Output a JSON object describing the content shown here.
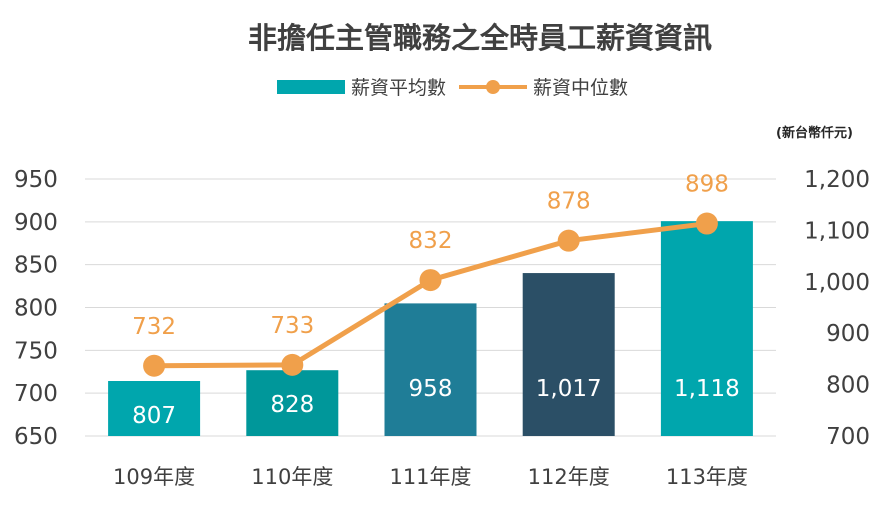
{
  "chart_data": {
    "type": "bar",
    "title": "非擔任主管職務之全時員工薪資資訊",
    "unit_label": "(新台幣仟元)",
    "categories": [
      "109年度",
      "110年度",
      "111年度",
      "112年度",
      "113年度"
    ],
    "series": [
      {
        "name": "薪資平均數",
        "type": "bar",
        "axis": "right",
        "values": [
          807,
          828,
          958,
          1017,
          1118
        ],
        "value_labels": [
          "807",
          "828",
          "958",
          "1,017",
          "1,118"
        ],
        "colors": [
          "#00a6ad",
          "#00979a",
          "#1f7d97",
          "#2b4f66",
          "#00a6ad"
        ]
      },
      {
        "name": "薪資中位數",
        "type": "line",
        "axis": "left",
        "values": [
          732,
          733,
          832,
          878,
          898
        ],
        "value_labels": [
          "732",
          "733",
          "832",
          "878",
          "898"
        ],
        "color": "#f0a04b"
      }
    ],
    "left_axis": {
      "ylim": [
        650,
        950
      ],
      "ticks": [
        "650",
        "700",
        "750",
        "800",
        "850",
        "900",
        "950"
      ]
    },
    "right_axis": {
      "ylim": [
        700,
        1200
      ],
      "ticks": [
        "700",
        "800",
        "900",
        "1,000",
        "1,100",
        "1,200"
      ]
    },
    "legend_position": "top-center",
    "grid": true
  }
}
